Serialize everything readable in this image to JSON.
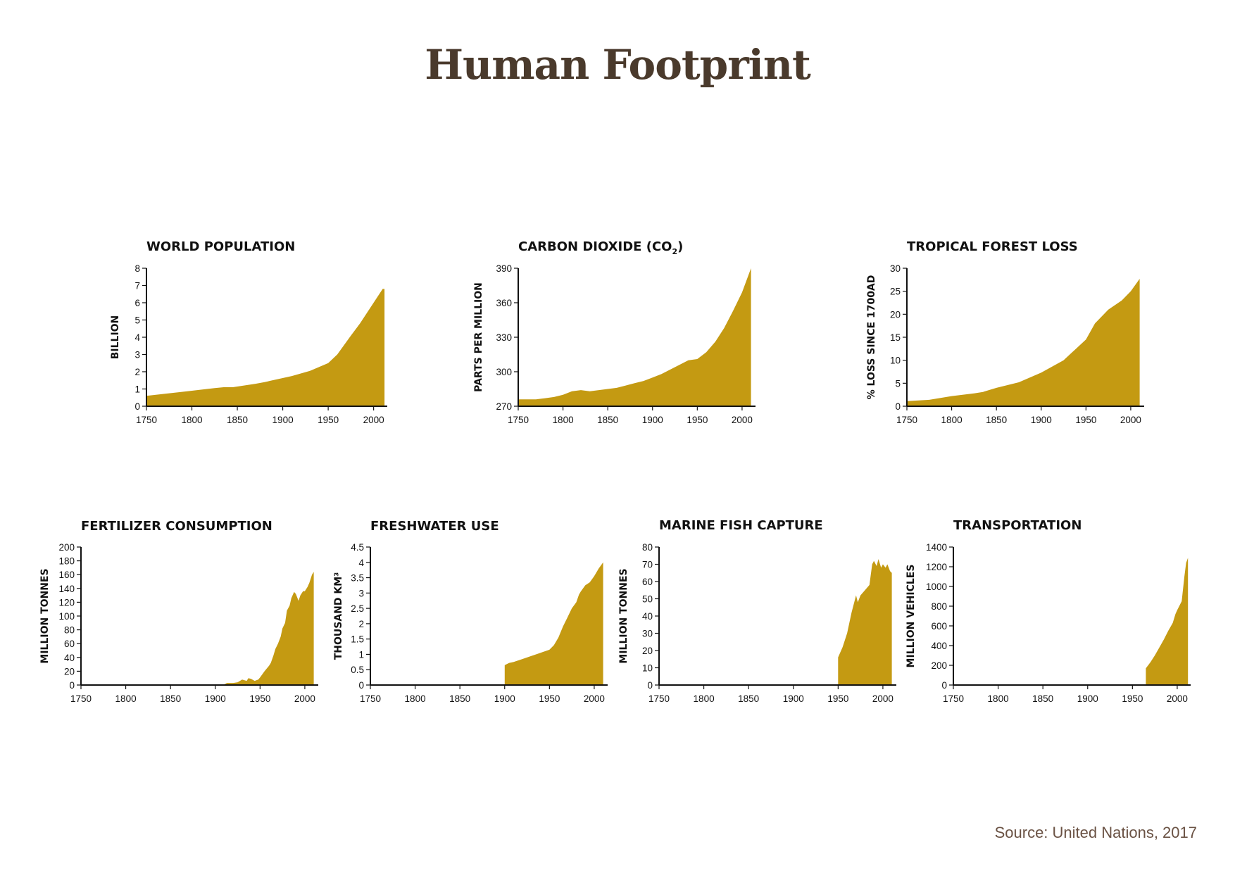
{
  "page": {
    "title": "Human Footprint",
    "source": "Source: United Nations, 2017"
  },
  "colors": {
    "fill": "#c49a12",
    "axis": "#111111",
    "title": "#4a3a2c"
  },
  "chart_data": [
    {
      "type": "area",
      "title": "WORLD POPULATION",
      "title_sub": "",
      "title_end": "",
      "ylabel": "BILLION",
      "xlim": [
        1750,
        2015
      ],
      "ylim": [
        0,
        8
      ],
      "xticks": [
        1750,
        1800,
        1850,
        1900,
        1950,
        2000
      ],
      "yticks": [
        0,
        1,
        2,
        3,
        4,
        5,
        6,
        7,
        8
      ],
      "grid": false,
      "series": [
        {
          "x": [
            1750,
            1775,
            1800,
            1825,
            1835,
            1845,
            1870,
            1880,
            1910,
            1930,
            1950,
            1960,
            1975,
            1985,
            2000,
            2010,
            2012
          ],
          "y": [
            0.6,
            0.75,
            0.9,
            1.05,
            1.1,
            1.1,
            1.3,
            1.4,
            1.75,
            2.05,
            2.5,
            3.0,
            4.1,
            4.8,
            6.0,
            6.8,
            6.8
          ]
        }
      ]
    },
    {
      "type": "area",
      "title": "CARBON DIOXIDE (CO",
      "title_sub": "2",
      "title_end": ")",
      "ylabel": "PARTS PER MILLION",
      "xlim": [
        1750,
        2015
      ],
      "ylim": [
        270,
        390
      ],
      "xticks": [
        1750,
        1800,
        1850,
        1900,
        1950,
        2000
      ],
      "yticks": [
        270,
        300,
        330,
        360,
        390
      ],
      "grid": false,
      "series": [
        {
          "x": [
            1750,
            1770,
            1780,
            1790,
            1800,
            1810,
            1820,
            1830,
            1840,
            1850,
            1860,
            1870,
            1880,
            1890,
            1900,
            1910,
            1920,
            1930,
            1940,
            1950,
            1960,
            1970,
            1980,
            1990,
            2000,
            2010
          ],
          "y": [
            276,
            276,
            277,
            278,
            280,
            283,
            284,
            283,
            284,
            285,
            286,
            288,
            290,
            292,
            295,
            298,
            302,
            306,
            310,
            311,
            317,
            326,
            338,
            353,
            369,
            390
          ]
        }
      ]
    },
    {
      "type": "area",
      "title": "TROPICAL FOREST LOSS",
      "title_sub": "",
      "title_end": "",
      "ylabel": "% LOSS SINCE 1700AD",
      "xlim": [
        1750,
        2015
      ],
      "ylim": [
        0,
        30
      ],
      "xticks": [
        1750,
        1800,
        1850,
        1900,
        1950,
        2000
      ],
      "yticks": [
        0,
        5,
        10,
        15,
        20,
        25,
        30
      ],
      "grid": false,
      "series": [
        {
          "x": [
            1750,
            1775,
            1800,
            1825,
            1835,
            1850,
            1875,
            1900,
            1925,
            1950,
            1960,
            1975,
            1990,
            2000,
            2010
          ],
          "y": [
            1.1,
            1.4,
            2.2,
            2.8,
            3.1,
            4.0,
            5.2,
            7.3,
            10.0,
            14.5,
            18.0,
            21.0,
            23.0,
            25.0,
            27.7
          ]
        }
      ]
    },
    {
      "type": "area",
      "title": "FERTILIZER CONSUMPTION",
      "title_sub": "",
      "title_end": "",
      "ylabel": "MILLION TONNES",
      "xlim": [
        1750,
        2015
      ],
      "ylim": [
        0,
        200
      ],
      "xticks": [
        1750,
        1800,
        1850,
        1900,
        1950,
        2000
      ],
      "yticks": [
        0,
        20,
        40,
        60,
        80,
        100,
        120,
        140,
        160,
        180,
        200
      ],
      "grid": false,
      "series": [
        {
          "x": [
            1910,
            1913,
            1920,
            1925,
            1930,
            1935,
            1937,
            1940,
            1944,
            1948,
            1950,
            1955,
            1960,
            1962,
            1965,
            1967,
            1970,
            1973,
            1975,
            1978,
            1980,
            1983,
            1985,
            1988,
            1990,
            1993,
            1995,
            1998,
            2000,
            2003,
            2005,
            2008,
            2010
          ],
          "y": [
            1,
            3,
            3,
            4,
            8,
            6,
            10,
            9,
            6,
            8,
            11,
            20,
            28,
            32,
            43,
            52,
            60,
            70,
            82,
            90,
            108,
            115,
            126,
            135,
            132,
            122,
            130,
            136,
            136,
            142,
            148,
            160,
            164
          ]
        }
      ]
    },
    {
      "type": "area",
      "title": "FRESHWATER USE",
      "title_sub": "",
      "title_end": "",
      "ylabel": "THOUSAND KM³",
      "xlim": [
        1750,
        2015
      ],
      "ylim": [
        0,
        4.5
      ],
      "xticks": [
        1750,
        1800,
        1850,
        1900,
        1950,
        2000
      ],
      "yticks": [
        0,
        0.5,
        1,
        1.5,
        2,
        2.5,
        3,
        3.5,
        4,
        4.5
      ],
      "grid": false,
      "series": [
        {
          "x": [
            1900,
            1905,
            1910,
            1920,
            1930,
            1940,
            1950,
            1955,
            1960,
            1965,
            1970,
            1975,
            1980,
            1983,
            1985,
            1990,
            1995,
            2000,
            2005,
            2010
          ],
          "y": [
            0.65,
            0.72,
            0.75,
            0.85,
            0.95,
            1.05,
            1.15,
            1.3,
            1.55,
            1.9,
            2.2,
            2.5,
            2.7,
            2.95,
            3.05,
            3.25,
            3.35,
            3.55,
            3.8,
            4.0
          ]
        }
      ]
    },
    {
      "type": "area",
      "title": "MARINE FISH CAPTURE",
      "title_sub": "",
      "title_end": "",
      "ylabel": "MILLION TONNES",
      "xlim": [
        1750,
        2015
      ],
      "ylim": [
        0,
        80
      ],
      "xticks": [
        1750,
        1800,
        1850,
        1900,
        1950,
        2000
      ],
      "yticks": [
        0,
        10,
        20,
        30,
        40,
        50,
        60,
        70,
        80
      ],
      "grid": false,
      "series": [
        {
          "x": [
            1950,
            1955,
            1960,
            1965,
            1970,
            1972,
            1975,
            1980,
            1985,
            1988,
            1990,
            1993,
            1995,
            1998,
            2000,
            2003,
            2005,
            2008,
            2010
          ],
          "y": [
            16,
            22,
            30,
            42,
            52,
            48,
            52,
            55,
            58,
            70,
            72,
            69,
            73,
            68,
            70,
            68,
            70,
            66,
            65
          ]
        }
      ]
    },
    {
      "type": "area",
      "title": "TRANSPORTATION",
      "title_sub": "",
      "title_end": "",
      "ylabel": "MILLION VEHICLES",
      "xlim": [
        1750,
        2015
      ],
      "ylim": [
        0,
        1400
      ],
      "xticks": [
        1750,
        1800,
        1850,
        1900,
        1950,
        2000
      ],
      "yticks": [
        0,
        200,
        400,
        600,
        800,
        1000,
        1200,
        1400
      ],
      "grid": false,
      "series": [
        {
          "x": [
            1965,
            1970,
            1975,
            1980,
            1985,
            1990,
            1995,
            1998,
            2000,
            2005,
            2008,
            2010,
            2012
          ],
          "y": [
            170,
            230,
            300,
            380,
            460,
            550,
            630,
            720,
            760,
            850,
            1100,
            1240,
            1290
          ]
        }
      ]
    }
  ]
}
